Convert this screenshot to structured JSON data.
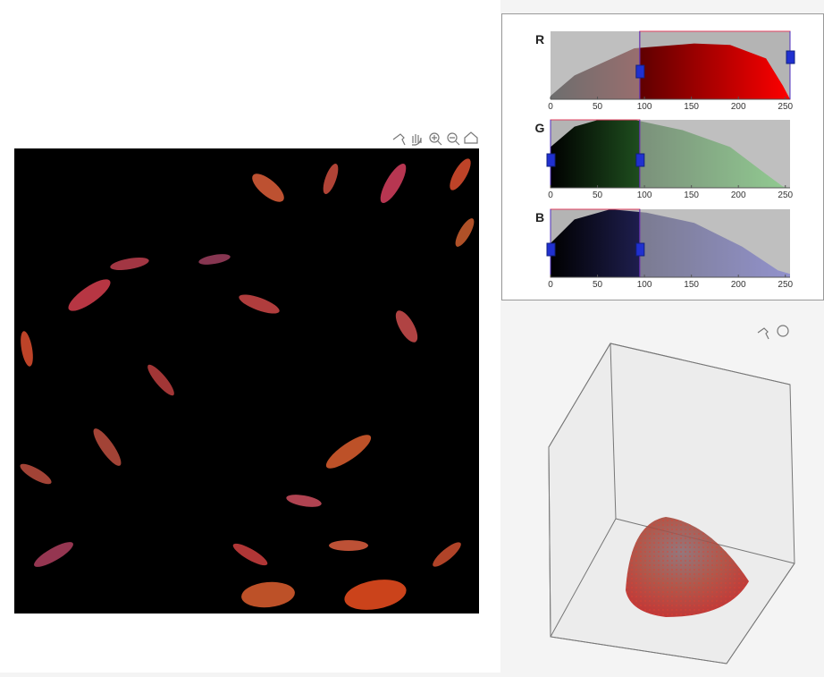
{
  "histograms": [
    {
      "channel": "R",
      "xlim": [
        0,
        255
      ],
      "ticks": [
        0,
        50,
        100,
        150,
        200,
        250
      ]
    },
    {
      "channel": "G",
      "xlim": [
        0,
        255
      ],
      "ticks": [
        0,
        50,
        100,
        150,
        200,
        250
      ]
    },
    {
      "channel": "B",
      "xlim": [
        0,
        255
      ],
      "ticks": [
        0,
        50,
        100,
        150,
        200,
        250
      ]
    }
  ]
}
